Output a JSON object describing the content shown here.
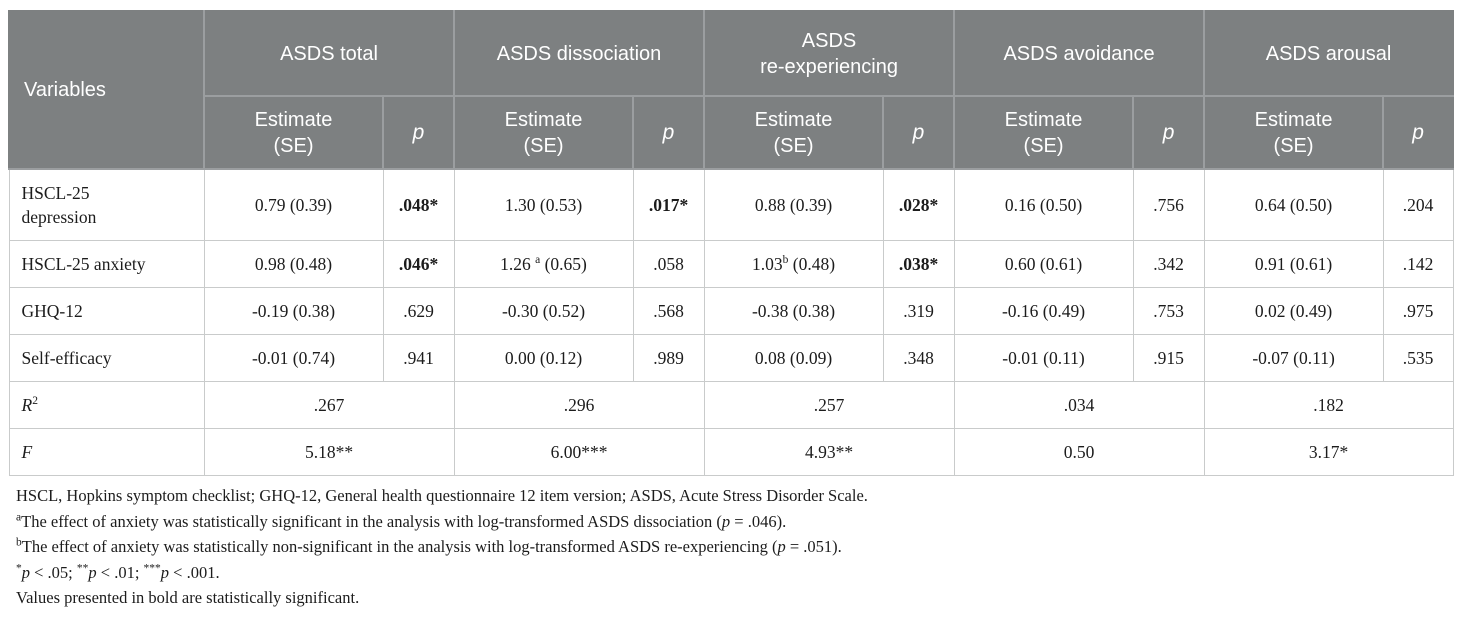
{
  "colors": {
    "header_bg": "#7d8081",
    "header_divider": "#9b9ea0",
    "header_text": "#ffffff",
    "body_border": "#c9cbcb",
    "body_text": "#1c1c1c",
    "background": "#ffffff"
  },
  "table": {
    "variables_header": "Variables",
    "groups": [
      "ASDS total",
      "ASDS dissociation",
      "ASDS\nre-experiencing",
      "ASDS avoidance",
      "ASDS arousal"
    ],
    "estimate_header": "Estimate\n(SE)",
    "p_header": "p",
    "rows": [
      {
        "variable": "HSCL-25\ndepression",
        "cells": [
          {
            "est": [
              {
                "t": "0.79 (0.39)"
              }
            ],
            "p": ".048*",
            "sig": true
          },
          {
            "est": [
              {
                "t": "1.30 (0.53)"
              }
            ],
            "p": ".017*",
            "sig": true
          },
          {
            "est": [
              {
                "t": "0.88 (0.39)"
              }
            ],
            "p": ".028*",
            "sig": true
          },
          {
            "est": [
              {
                "t": "0.16 (0.50)"
              }
            ],
            "p": ".756",
            "sig": false
          },
          {
            "est": [
              {
                "t": "0.64 (0.50)"
              }
            ],
            "p": ".204",
            "sig": false
          }
        ]
      },
      {
        "variable": "HSCL-25 anxiety",
        "cells": [
          {
            "est": [
              {
                "t": "0.98 (0.48)"
              }
            ],
            "p": ".046*",
            "sig": true
          },
          {
            "est": [
              {
                "t": "1.26 "
              },
              {
                "t": "a",
                "sup": true
              },
              {
                "t": " (0.65)"
              }
            ],
            "p": ".058",
            "sig": false
          },
          {
            "est": [
              {
                "t": "1.03"
              },
              {
                "t": "b",
                "sup": true
              },
              {
                "t": " (0.48)"
              }
            ],
            "p": ".038*",
            "sig": true
          },
          {
            "est": [
              {
                "t": "0.60 (0.61)"
              }
            ],
            "p": ".342",
            "sig": false
          },
          {
            "est": [
              {
                "t": "0.91 (0.61)"
              }
            ],
            "p": ".142",
            "sig": false
          }
        ]
      },
      {
        "variable": "GHQ-12",
        "cells": [
          {
            "est": [
              {
                "t": "-0.19 (0.38)"
              }
            ],
            "p": ".629",
            "sig": false
          },
          {
            "est": [
              {
                "t": "-0.30 (0.52)"
              }
            ],
            "p": ".568",
            "sig": false
          },
          {
            "est": [
              {
                "t": "-0.38 (0.38)"
              }
            ],
            "p": ".319",
            "sig": false
          },
          {
            "est": [
              {
                "t": "-0.16 (0.49)"
              }
            ],
            "p": ".753",
            "sig": false
          },
          {
            "est": [
              {
                "t": "0.02 (0.49)"
              }
            ],
            "p": ".975",
            "sig": false
          }
        ]
      },
      {
        "variable": "Self-efficacy",
        "cells": [
          {
            "est": [
              {
                "t": "-0.01 (0.74)"
              }
            ],
            "p": ".941",
            "sig": false
          },
          {
            "est": [
              {
                "t": "0.00 (0.12)"
              }
            ],
            "p": ".989",
            "sig": false
          },
          {
            "est": [
              {
                "t": "0.08 (0.09)"
              }
            ],
            "p": ".348",
            "sig": false
          },
          {
            "est": [
              {
                "t": "-0.01 (0.11)"
              }
            ],
            "p": ".915",
            "sig": false
          },
          {
            "est": [
              {
                "t": "-0.07 (0.11)"
              }
            ],
            "p": ".535",
            "sig": false
          }
        ]
      }
    ],
    "summary_rows": [
      {
        "label": "R",
        "label_sup": "2",
        "values": [
          ".267",
          ".296",
          ".257",
          ".034",
          ".182"
        ]
      },
      {
        "label": "F",
        "label_sup": "",
        "values": [
          "5.18**",
          "6.00***",
          "4.93**",
          "0.50",
          "3.17*"
        ]
      }
    ]
  },
  "footnotes": [
    [
      {
        "t": "HSCL, Hopkins symptom checklist; GHQ-12, General health questionnaire 12 item version; ASDS, Acute Stress Disorder Scale."
      }
    ],
    [
      {
        "t": "a",
        "sup": true
      },
      {
        "t": "The effect of anxiety was statistically significant in the analysis with log-transformed ASDS dissociation ("
      },
      {
        "t": "p",
        "i": true
      },
      {
        "t": " = .046)."
      }
    ],
    [
      {
        "t": "b",
        "sup": true
      },
      {
        "t": "The effect of anxiety was statistically non-significant in the analysis with log-transformed ASDS re-experiencing ("
      },
      {
        "t": "p",
        "i": true
      },
      {
        "t": " = .051)."
      }
    ],
    [
      {
        "t": "*",
        "sup": true
      },
      {
        "t": "p",
        "i": true
      },
      {
        "t": " < .05; "
      },
      {
        "t": "**",
        "sup": true
      },
      {
        "t": "p",
        "i": true
      },
      {
        "t": " < .01; "
      },
      {
        "t": "***",
        "sup": true
      },
      {
        "t": "p",
        "i": true
      },
      {
        "t": " < .001."
      }
    ],
    [
      {
        "t": "Values presented in bold are statistically significant."
      }
    ]
  ]
}
